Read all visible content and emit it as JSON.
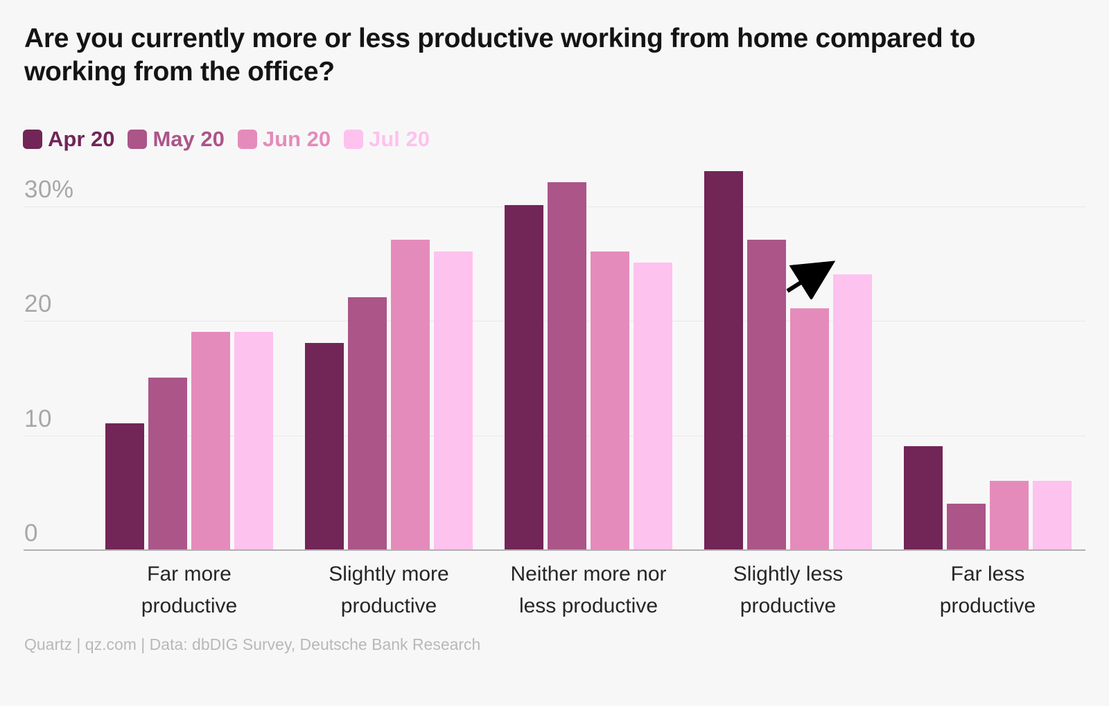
{
  "title": {
    "line1": "Are you currently more or less productive working from home compared to",
    "line2": "working from the office?"
  },
  "footer": "Quartz | qz.com | Data: dbDIG Survey, Deutsche Bank Research",
  "colors": {
    "background": "#f8f7f8",
    "gridline": "#e9e7e8",
    "axis_line": "#b1afb0",
    "tick_text": "#a8a6a7",
    "title_text": "#141414",
    "category_text": "#262626",
    "footer_text": "#b9b7b8",
    "arrow": "#000000",
    "apr_20": "#722557",
    "may_20": "#ab5589",
    "jun_20": "#e58bbb",
    "jul_20": "#fdc2ee"
  },
  "chart_data": {
    "type": "bar",
    "title": "Are you currently more or less productive working from home compared to working from the office?",
    "unit": "%",
    "categories": [
      "Far more productive",
      "Slightly more productive",
      "Neither more nor less productive",
      "Slightly less productive",
      "Far less productive"
    ],
    "categories_lines": [
      [
        "Far more",
        "productive"
      ],
      [
        "Slightly more",
        "productive"
      ],
      [
        "Neither more nor",
        "less productive"
      ],
      [
        "Slightly less",
        "productive"
      ],
      [
        "Far less",
        "productive"
      ]
    ],
    "series": [
      {
        "name": "Apr 20",
        "color": "#722557",
        "values": [
          11,
          18,
          30,
          33,
          9
        ]
      },
      {
        "name": "May 20",
        "color": "#ab5589",
        "values": [
          15,
          22,
          32,
          27,
          4
        ]
      },
      {
        "name": "Jun 20",
        "color": "#e58bbb",
        "values": [
          19,
          27,
          26,
          21,
          6
        ]
      },
      {
        "name": "Jul 20",
        "color": "#fdc2ee",
        "values": [
          19,
          26,
          25,
          24,
          6
        ]
      }
    ],
    "yticks": [
      {
        "value": 0,
        "label": "0"
      },
      {
        "value": 10,
        "label": "10"
      },
      {
        "value": 20,
        "label": "20"
      },
      {
        "value": 30,
        "label": "30%"
      }
    ],
    "ylim": [
      0,
      34
    ],
    "grid": true,
    "legend_position": "top-left",
    "annotation": {
      "type": "arrow",
      "meaning": "highlights rise of Jul 20 bar in Slightly less productive group"
    }
  }
}
